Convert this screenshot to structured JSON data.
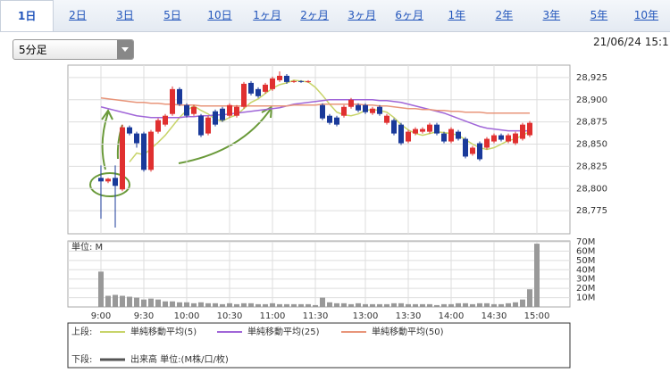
{
  "tabs": [
    "1日",
    "2日",
    "3日",
    "5日",
    "10日",
    "1ヶ月",
    "2ヶ月",
    "3ヶ月",
    "6ヶ月",
    "1年",
    "2年",
    "3年",
    "5年",
    "10年"
  ],
  "dropdown": "5分足",
  "timestamp": "21/06/24 15:1",
  "legend": {
    "upper_label": "上段:",
    "lower_label": "下段:"
  },
  "chart_data": [
    {
      "type": "candlestick",
      "up_color": "#e03030",
      "down_color": "#1a3a9a",
      "grid": true,
      "ylim": [
        28749,
        28939
      ],
      "yticks": [
        {
          "value": 28925,
          "label": "28,925"
        },
        {
          "value": 28900,
          "label": "28,900"
        },
        {
          "value": 28875,
          "label": "28,875"
        },
        {
          "value": 28850,
          "label": "28,850"
        },
        {
          "value": 28825,
          "label": "28,825"
        },
        {
          "value": 28800,
          "label": "28,800"
        },
        {
          "value": 28775,
          "label": "28,775"
        }
      ],
      "open": [
        28812,
        28808,
        28812,
        28799,
        28869,
        28862,
        28862,
        28821,
        28864,
        28872,
        28884,
        28912,
        28894,
        28884,
        28882,
        28862,
        28887,
        28890,
        28882,
        28882,
        28892,
        28919,
        28912,
        28909,
        28912,
        28922,
        28927,
        28920,
        28921,
        28920,
        null,
        28894,
        28882,
        28880,
        28882,
        28892,
        28894,
        28894,
        28885,
        28892,
        28874,
        28877,
        28872,
        28853,
        28862,
        28864,
        28864,
        28872,
        28862,
        28853,
        28864,
        28856,
        28839,
        28851,
        28846,
        28853,
        28860,
        28853,
        28851,
        28856,
        28860,
        null
      ],
      "high": [
        28826,
        28812,
        28826,
        28872,
        28871,
        28864,
        28864,
        28866,
        28879,
        28884,
        28915,
        28914,
        28896,
        28894,
        28884,
        28882,
        28889,
        28892,
        28896,
        28894,
        28920,
        28921,
        28914,
        28919,
        28926,
        28932,
        28929,
        28922,
        28922,
        28922,
        null,
        28896,
        28884,
        28882,
        28894,
        28902,
        28896,
        28896,
        28892,
        28894,
        28884,
        28879,
        28874,
        28866,
        28869,
        28869,
        28874,
        28874,
        28864,
        28869,
        28866,
        28858,
        28848,
        28853,
        28858,
        28862,
        28862,
        28862,
        28864,
        28874,
        28876,
        null
      ],
      "low": [
        28766,
        28806,
        28756,
        28797,
        28860,
        28846,
        28819,
        28819,
        28862,
        28870,
        28882,
        28893,
        28880,
        28882,
        28858,
        28860,
        28870,
        28875,
        28880,
        28880,
        28890,
        28905,
        28902,
        28907,
        28910,
        28920,
        28918,
        28919,
        28919,
        28919,
        null,
        28877,
        28872,
        28870,
        28880,
        28890,
        28886,
        28884,
        28883,
        28882,
        28872,
        28860,
        28849,
        28851,
        28860,
        28862,
        28862,
        28860,
        28851,
        28851,
        28854,
        28834,
        28837,
        28831,
        28844,
        28851,
        28853,
        28851,
        28849,
        28854,
        28858,
        null
      ],
      "close": [
        28808,
        28811,
        28803,
        28869,
        28862,
        28851,
        28821,
        28864,
        28877,
        28882,
        28912,
        28895,
        28882,
        28892,
        28860,
        28880,
        28872,
        28877,
        28894,
        28892,
        28918,
        28907,
        28904,
        28917,
        28924,
        28927,
        28920,
        28921,
        28920,
        28921,
        null,
        28879,
        28874,
        28872,
        28892,
        28900,
        28888,
        28886,
        28890,
        28884,
        28882,
        28862,
        28851,
        28864,
        28867,
        28867,
        28872,
        28862,
        28853,
        28867,
        28856,
        28836,
        28846,
        28833,
        28856,
        28860,
        28855,
        28860,
        28862,
        28872,
        28874,
        null
      ],
      "series": [
        {
          "name": "単純移動平均(5)",
          "color": "#c8d46a",
          "values": [
            null,
            null,
            null,
            null,
            28830,
            28840,
            28838,
            28845,
            28852,
            28860,
            28870,
            28880,
            28888,
            28893,
            28888,
            28884,
            28878,
            28876,
            28880,
            28883,
            28890,
            28897,
            28901,
            28907,
            28913,
            28917,
            28919,
            28922,
            28921,
            28920,
            28914,
            28905,
            28895,
            28886,
            28883,
            28882,
            28884,
            28888,
            28889,
            28888,
            28886,
            28880,
            28872,
            28866,
            28862,
            28860,
            28862,
            28864,
            28863,
            28862,
            28860,
            28855,
            28850,
            28846,
            28844,
            28846,
            28850,
            28854,
            28856,
            28860,
            28864,
            null
          ]
        },
        {
          "name": "単純移動平均(25)",
          "color": "#a066d8",
          "values": [
            28892,
            28890,
            28888,
            28886,
            28884,
            28882,
            28881,
            28880,
            28880,
            28880,
            28880,
            28880,
            28881,
            28881,
            28882,
            28882,
            28883,
            28883,
            28884,
            28885,
            28886,
            28887,
            28888,
            28889,
            28890,
            28891,
            28893,
            28895,
            28896,
            28897,
            28898,
            28899,
            28900,
            28900,
            28900,
            28900,
            28900,
            28900,
            28900,
            28899,
            28899,
            28898,
            28897,
            28895,
            28893,
            28891,
            28889,
            28887,
            28885,
            28882,
            28879,
            28876,
            28873,
            28870,
            28868,
            28867,
            28866,
            28865,
            28865,
            28865,
            28865,
            null
          ]
        },
        {
          "name": "単純移動平均(50)",
          "color": "#e8957a",
          "values": [
            28902,
            28901,
            28900,
            28899,
            28898,
            28897,
            28897,
            28896,
            28896,
            28895,
            28895,
            28894,
            28894,
            28894,
            28893,
            28893,
            28893,
            28893,
            28893,
            28893,
            28893,
            28893,
            28893,
            28893,
            28893,
            28893,
            28893,
            28894,
            28894,
            28894,
            28894,
            28895,
            28895,
            28895,
            28895,
            28895,
            28895,
            28894,
            28894,
            28893,
            28893,
            28892,
            28891,
            28890,
            28890,
            28889,
            28889,
            28888,
            28888,
            28887,
            28887,
            28886,
            28886,
            28886,
            28885,
            28885,
            28885,
            28885,
            28885,
            28885,
            28885,
            null
          ]
        }
      ]
    },
    {
      "type": "bar",
      "unit_label": "単位: M",
      "name": "出来高 単位:(M株/口/枚)",
      "color": "#999999",
      "legend_color": "#555555",
      "grid": true,
      "ylim": [
        0,
        70
      ],
      "yticks": [
        {
          "value": 70,
          "label": "70M"
        },
        {
          "value": 60,
          "label": "60M"
        },
        {
          "value": 50,
          "label": "50M"
        },
        {
          "value": 40,
          "label": "40M"
        },
        {
          "value": 30,
          "label": "30M"
        },
        {
          "value": 20,
          "label": "20M"
        },
        {
          "value": 10,
          "label": "10M"
        }
      ],
      "categories": [
        "9:00",
        null,
        null,
        null,
        null,
        null,
        "9:30",
        null,
        null,
        null,
        null,
        null,
        "10:00",
        null,
        null,
        null,
        null,
        null,
        "10:30",
        null,
        null,
        null,
        null,
        null,
        "11:00",
        null,
        null,
        null,
        null,
        null,
        "11:30",
        null,
        null,
        null,
        null,
        null,
        null,
        "13:00",
        null,
        null,
        null,
        null,
        null,
        "13:30",
        null,
        null,
        null,
        null,
        null,
        "14:00",
        null,
        null,
        null,
        null,
        null,
        "14:30",
        null,
        null,
        null,
        null,
        null,
        "15:00"
      ],
      "values": [
        38,
        12,
        13,
        12,
        11,
        10,
        8,
        9,
        8,
        6,
        6,
        5,
        5,
        4,
        5,
        4,
        4,
        3,
        4,
        3,
        4,
        4,
        3,
        3,
        4,
        3,
        3,
        3,
        3,
        3,
        2,
        10,
        5,
        4,
        4,
        3,
        4,
        3,
        3,
        3,
        3,
        4,
        4,
        3,
        3,
        3,
        3,
        2,
        3,
        3,
        4,
        4,
        3,
        4,
        4,
        3,
        3,
        4,
        5,
        8,
        19,
        68
      ]
    }
  ]
}
